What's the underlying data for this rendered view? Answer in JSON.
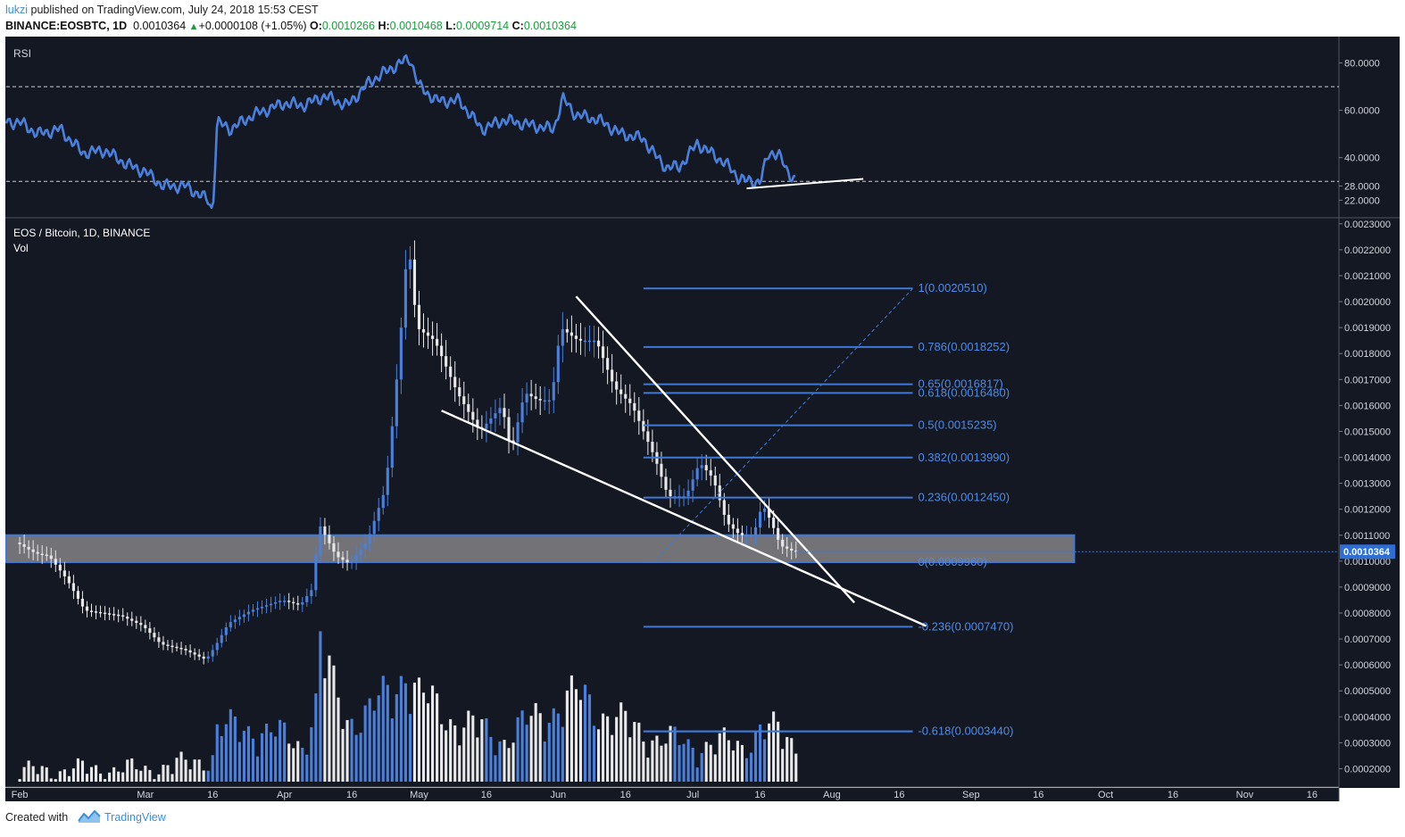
{
  "header": {
    "user": "lukzi",
    "published": " published on TradingView.com, July 24, 2018 15:53 CEST",
    "symbol": "BINANCE:EOSBTC, 1D",
    "last": "0.0010364",
    "change": "+0.0000108 (+1.05%)",
    "o_label": "O:",
    "o_value": "0.0010266",
    "h_label": "H:",
    "h_value": "0.0010468",
    "l_label": "L:",
    "l_value": "0.0009714",
    "c_label": "C:",
    "c_value": "0.0010364"
  },
  "footer": {
    "created_with": "Created with",
    "brand": "TradingView"
  },
  "colors": {
    "background": "#141823",
    "bull": "#4a80dc",
    "bear": "#e8e8e8",
    "rsi_line": "#4a80dc",
    "fib": "#3f79d6",
    "trendline": "#ffffff"
  },
  "chart_data": [
    {
      "type": "line",
      "title": "RSI",
      "ylim": [
        15,
        90
      ],
      "ticks": [
        "80.0000",
        "60.0000",
        "40.0000",
        "28.0000",
        "22.0000"
      ],
      "tick_values": [
        80,
        60,
        40,
        28,
        22
      ],
      "levels": [
        70,
        30
      ],
      "x": [
        "2018-02-01",
        "2018-02-05",
        "2018-02-10",
        "2018-02-15",
        "2018-02-20",
        "2018-02-25",
        "2018-03-01",
        "2018-03-05",
        "2018-03-10",
        "2018-03-15",
        "2018-03-16",
        "2018-03-17",
        "2018-03-20",
        "2018-03-25",
        "2018-04-01",
        "2018-04-05",
        "2018-04-10",
        "2018-04-15",
        "2018-04-20",
        "2018-04-25",
        "2018-04-29",
        "2018-05-01",
        "2018-05-05",
        "2018-05-10",
        "2018-05-15",
        "2018-05-20",
        "2018-05-25",
        "2018-05-31",
        "2018-06-02",
        "2018-06-05",
        "2018-06-10",
        "2018-06-15",
        "2018-06-20",
        "2018-06-23",
        "2018-06-25",
        "2018-06-28",
        "2018-07-02",
        "2018-07-05",
        "2018-07-08",
        "2018-07-11",
        "2018-07-13",
        "2018-07-16",
        "2018-07-18",
        "2018-07-20",
        "2018-07-22",
        "2018-07-24"
      ],
      "values": [
        55,
        50,
        52,
        42,
        43,
        37,
        34,
        28,
        28,
        22,
        17,
        55,
        52,
        58,
        63,
        62,
        66,
        62,
        72,
        78,
        82,
        70,
        64,
        64,
        52,
        56,
        54,
        52,
        65,
        58,
        56,
        50,
        48,
        40,
        36,
        36,
        46,
        42,
        38,
        32,
        30,
        30,
        42,
        42,
        34,
        31
      ],
      "trendline": {
        "from": [
          "2018-07-13",
          27
        ],
        "to": [
          "2018-08-08",
          31
        ]
      }
    },
    {
      "type": "candlestick",
      "title": "EOS / Bitcoin, 1D, BINANCE",
      "subtitle": "Vol",
      "ylim": [
        0.00015,
        0.00232
      ],
      "y_ticks": [
        "0.0023000",
        "0.0022000",
        "0.0021000",
        "0.0020000",
        "0.0019000",
        "0.0018000",
        "0.0017000",
        "0.0016000",
        "0.0015000",
        "0.0014000",
        "0.0013000",
        "0.0012000",
        "0.0011000",
        "0.0010000",
        "0.0009000",
        "0.0008000",
        "0.0007000",
        "0.0006000",
        "0.0005000",
        "0.0004000",
        "0.0003000",
        "0.0002000"
      ],
      "y_tick_values": [
        0.0023,
        0.0022,
        0.0021,
        0.002,
        0.0019,
        0.0018,
        0.0017,
        0.0016,
        0.0015,
        0.0014,
        0.0013,
        0.0012,
        0.0011,
        0.001,
        0.0009,
        0.0008,
        0.0007,
        0.0006,
        0.0005,
        0.0004,
        0.0003,
        0.0002
      ],
      "x_ticks": [
        "Feb",
        "Mar",
        "16",
        "Apr",
        "16",
        "May",
        "16",
        "Jun",
        "16",
        "Jul",
        "16",
        "Aug",
        "16",
        "Sep",
        "16",
        "Oct",
        "16",
        "Nov",
        "16"
      ],
      "x_tick_dates": [
        "2018-02-01",
        "2018-03-01",
        "2018-03-16",
        "2018-04-01",
        "2018-04-16",
        "2018-05-01",
        "2018-05-16",
        "2018-06-01",
        "2018-06-16",
        "2018-07-01",
        "2018-07-16",
        "2018-08-01",
        "2018-08-16",
        "2018-09-01",
        "2018-09-16",
        "2018-10-01",
        "2018-10-16",
        "2018-11-01",
        "2018-11-16"
      ],
      "close_path": {
        "x": [
          "2018-01-29",
          "2018-02-01",
          "2018-02-05",
          "2018-02-08",
          "2018-02-12",
          "2018-02-16",
          "2018-02-20",
          "2018-02-24",
          "2018-03-01",
          "2018-03-05",
          "2018-03-10",
          "2018-03-15",
          "2018-03-17",
          "2018-03-20",
          "2018-03-25",
          "2018-04-01",
          "2018-04-05",
          "2018-04-08",
          "2018-04-09",
          "2018-04-13",
          "2018-04-16",
          "2018-04-20",
          "2018-04-24",
          "2018-04-26",
          "2018-04-28",
          "2018-04-29",
          "2018-05-01",
          "2018-05-05",
          "2018-05-10",
          "2018-05-15",
          "2018-05-20",
          "2018-05-22",
          "2018-05-25",
          "2018-05-28",
          "2018-05-31",
          "2018-06-02",
          "2018-06-06",
          "2018-06-10",
          "2018-06-14",
          "2018-06-18",
          "2018-06-20",
          "2018-06-23",
          "2018-06-26",
          "2018-06-30",
          "2018-07-03",
          "2018-07-06",
          "2018-07-09",
          "2018-07-12",
          "2018-07-15",
          "2018-07-17",
          "2018-07-19",
          "2018-07-21",
          "2018-07-24"
        ],
        "y": [
          0.00108,
          0.00107,
          0.00103,
          0.00102,
          0.00093,
          0.00081,
          0.0008,
          0.00079,
          0.00075,
          0.00068,
          0.00066,
          0.00062,
          0.00067,
          0.00076,
          0.00081,
          0.00085,
          0.00083,
          0.0009,
          0.00115,
          0.00102,
          0.00099,
          0.00108,
          0.00128,
          0.0016,
          0.002,
          0.00225,
          0.0019,
          0.00185,
          0.00165,
          0.0015,
          0.0016,
          0.00142,
          0.00165,
          0.00162,
          0.00162,
          0.0019,
          0.00185,
          0.00185,
          0.00167,
          0.0016,
          0.00152,
          0.0014,
          0.00125,
          0.00125,
          0.00138,
          0.00132,
          0.00115,
          0.0011,
          0.0011,
          0.00122,
          0.00115,
          0.00106,
          0.0010364
        ]
      },
      "volume_path": {
        "x": [
          "2018-02-01",
          "2018-02-15",
          "2018-03-01",
          "2018-03-10",
          "2018-03-16",
          "2018-03-17",
          "2018-03-25",
          "2018-04-05",
          "2018-04-08",
          "2018-04-09",
          "2018-04-12",
          "2018-04-15",
          "2018-04-20",
          "2018-04-25",
          "2018-04-28",
          "2018-05-01",
          "2018-05-10",
          "2018-05-20",
          "2018-06-01",
          "2018-06-06",
          "2018-06-15",
          "2018-06-20",
          "2018-06-30",
          "2018-07-05",
          "2018-07-12",
          "2018-07-16",
          "2018-07-20",
          "2018-07-24"
        ],
        "y": [
          0.00019,
          0.0002,
          0.0002,
          0.00022,
          0.00025,
          0.00035,
          0.00036,
          0.0003,
          0.00045,
          0.00068,
          0.0005,
          0.0004,
          0.00042,
          0.0005,
          0.0006,
          0.00048,
          0.00038,
          0.00032,
          0.00045,
          0.00048,
          0.00038,
          0.00034,
          0.00029,
          0.0003,
          0.00029,
          0.00036,
          0.00034,
          0.0003
        ]
      },
      "fibonacci": [
        {
          "label": "1(0.0020510)",
          "value": 0.002051
        },
        {
          "label": "0.786(0.0018252)",
          "value": 0.0018252
        },
        {
          "label": "0.65(0.0016817)",
          "value": 0.0016817
        },
        {
          "label": "0.618(0.0016480)",
          "value": 0.001648
        },
        {
          "label": "0.5(0.0015235)",
          "value": 0.0015235
        },
        {
          "label": "0.382(0.0013990)",
          "value": 0.001399
        },
        {
          "label": "0.236(0.0012450)",
          "value": 0.001245
        },
        {
          "label": "0(0.0009960)",
          "value": 0.000996
        },
        {
          "label": "-0.236(0.0007470)",
          "value": 0.000747
        },
        {
          "label": "-0.618(0.0003440)",
          "value": 0.000344
        }
      ],
      "fib_span": [
        "2018-06-20",
        "2018-08-19"
      ],
      "volume_line": {
        "from": "2018-06-20",
        "to": "2018-08-19",
        "value": 0.000344
      },
      "support_zone": {
        "from": "2018-01-29",
        "to": "2018-09-24",
        "low": 0.000996,
        "high": 0.0011
      },
      "last_price_label": "0.0010364",
      "last_price": 0.0010364,
      "trendlines": [
        {
          "from": [
            "2018-06-05",
            0.00202
          ],
          "to": [
            "2018-08-06",
            0.00084
          ]
        },
        {
          "from": [
            "2018-05-06",
            0.00158
          ],
          "to": [
            "2018-08-22",
            0.00075
          ]
        }
      ],
      "projection": {
        "from": [
          "2018-06-23",
          0.00101
        ],
        "to": [
          "2018-08-19",
          0.00205
        ]
      }
    }
  ]
}
